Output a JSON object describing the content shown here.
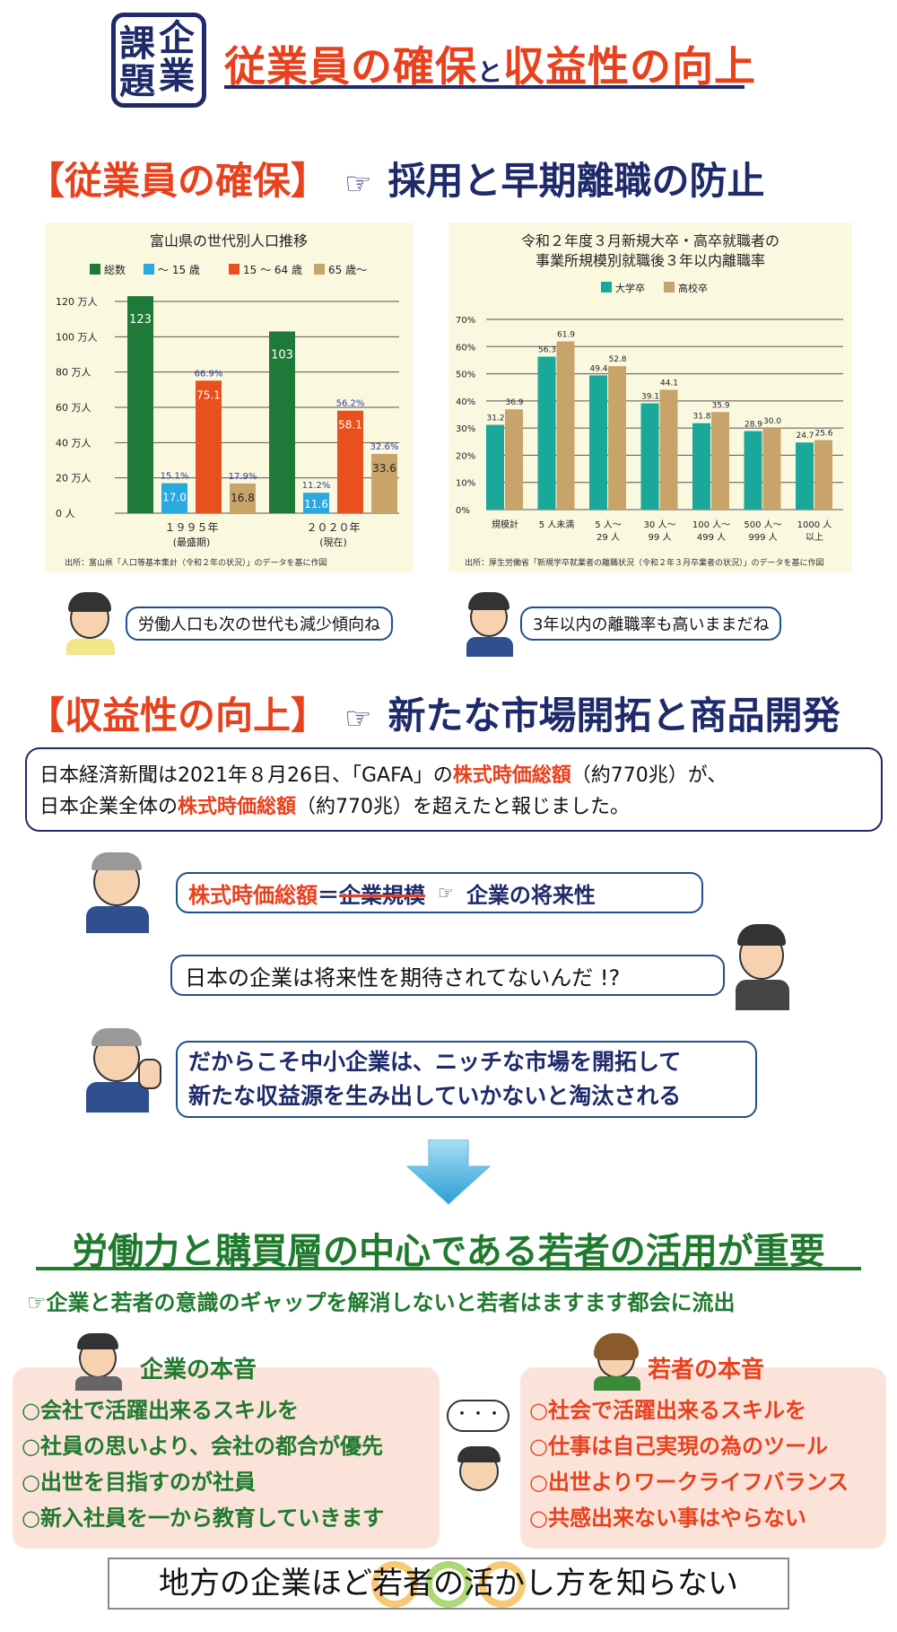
{
  "header": {
    "badge_chars": [
      "課",
      "企",
      "題",
      "業"
    ],
    "title_part1": "従業員の確保",
    "title_and": "と",
    "title_part2": "収益性の向上"
  },
  "section1": {
    "bracket": "【従業員の確保】",
    "pointer": "☞",
    "subtitle": "採用と早期離職の防止"
  },
  "chart_left": {
    "type": "bar",
    "title": "富山県の世代別人口推移",
    "legend": [
      "総数",
      "～ 15 歳",
      "15 ～ 64 歳",
      "65 歳～"
    ],
    "colors": [
      "#1f7a3a",
      "#2aa8e0",
      "#e8501d",
      "#c9a46a"
    ],
    "yticks": [
      "120 万人",
      "100 万人",
      "80 万人",
      "60 万人",
      "40 万人",
      "20 万人",
      "0 人"
    ],
    "categories": [
      "１９９５年",
      "２０２０年"
    ],
    "category_notes": [
      "(最盛期)",
      "(現在)"
    ],
    "values": [
      [
        123,
        17.0,
        75.1,
        16.8
      ],
      [
        103,
        11.6,
        58.1,
        33.6
      ]
    ],
    "value_labels": [
      [
        "123",
        "17.0",
        "75.1",
        "16.8"
      ],
      [
        "103",
        "11.6",
        "58.1",
        "33.6"
      ]
    ],
    "pct_labels": [
      [
        "",
        "15.1%",
        "66.9%",
        "17.9%"
      ],
      [
        "",
        "11.2%",
        "56.2%",
        "32.6%"
      ]
    ],
    "ylim": [
      0,
      120
    ],
    "source": "出所：富山県「人口等基本集計（令和２年の状況）」のデータを基に作図"
  },
  "chart_right": {
    "type": "bar",
    "title_line1": "令和２年度３月新規大卒・高卒就職者の",
    "title_line2": "事業所規模別就職後３年以内離職率",
    "legend": [
      "大学卒",
      "高校卒"
    ],
    "colors": [
      "#1aa89a",
      "#c9a46a"
    ],
    "yticks": [
      "70%",
      "60%",
      "50%",
      "40%",
      "30%",
      "20%",
      "10%",
      "0%"
    ],
    "categories": [
      [
        "規模計"
      ],
      [
        "5 人未満"
      ],
      [
        "5 人～",
        "29 人"
      ],
      [
        "30 人～",
        "99 人"
      ],
      [
        "100 人～",
        "499 人"
      ],
      [
        "500 人～",
        "999 人"
      ],
      [
        "1000 人",
        "以上"
      ]
    ],
    "series": [
      {
        "name": "大学卒",
        "values": [
          31.2,
          56.3,
          49.4,
          39.1,
          31.8,
          28.9,
          24.7
        ]
      },
      {
        "name": "高校卒",
        "values": [
          36.9,
          61.9,
          52.8,
          44.1,
          35.9,
          30.0,
          25.6
        ]
      }
    ],
    "value_labels": [
      [
        "31.2",
        "56.3",
        "49.4",
        "39.1",
        "31.8",
        "28.9",
        "24.7"
      ],
      [
        "36.9",
        "61.9",
        "52.8",
        "44.1",
        "35.9",
        "30.0",
        "25.6"
      ]
    ],
    "ylim": [
      0,
      70
    ],
    "source": "出所：厚生労働省「新規学卒就業者の離職状況（令和２年３月卒業者の状況）」のデータを基に作図"
  },
  "bubbles": {
    "left": "労働人口も次の世代も減少傾向ね",
    "right": "3年以内の離職率も高いままだね"
  },
  "section2": {
    "bracket": "【収益性の向上】",
    "pointer": "☞",
    "subtitle": "新たな市場開拓と商品開発"
  },
  "news": {
    "l1a": "日本経済新聞は2021年８月26日、「GAFA」の",
    "l1hl": "株式時価総額",
    "l1b": "（約770兆）が、",
    "l2a": "日本企業全体の",
    "l2hl": "株式時価総額",
    "l2b": "（約770兆）を超えたと報じました。"
  },
  "equation": {
    "left": "株式時価総額",
    "eq": "＝",
    "struck": "企業規模",
    "pointer": "☞",
    "right": "企業の将来性"
  },
  "question": "日本の企業は将来性を期待されてないんだ !?",
  "answer": {
    "l1": "だからこそ中小企業は、ニッチな市場を開拓して",
    "l2": "新たな収益源を生み出していかないと淘汰される"
  },
  "conclusion": {
    "title": "労働力と購買層の中心である若者の活用が重要",
    "sub": "☞企業と若者の意識のギャップを解消しないと若者はますます都会に流出"
  },
  "company": {
    "title": "企業の本音",
    "items": [
      "○会社で活躍出来るスキルを",
      "○社員の思いより、会社の都合が優先",
      "○出世を目指すのが社員",
      "○新入社員を一から教育していきます"
    ]
  },
  "youth": {
    "title": "若者の本音",
    "items": [
      "○社会で活躍出来るスキルを",
      "○仕事は自己実現の為のツール",
      "○出世よりワークライフバランス",
      "○共感出来ない事はやらない"
    ]
  },
  "thought": "・・・",
  "footer": "地方の企業ほど若者の活かし方を知らない"
}
